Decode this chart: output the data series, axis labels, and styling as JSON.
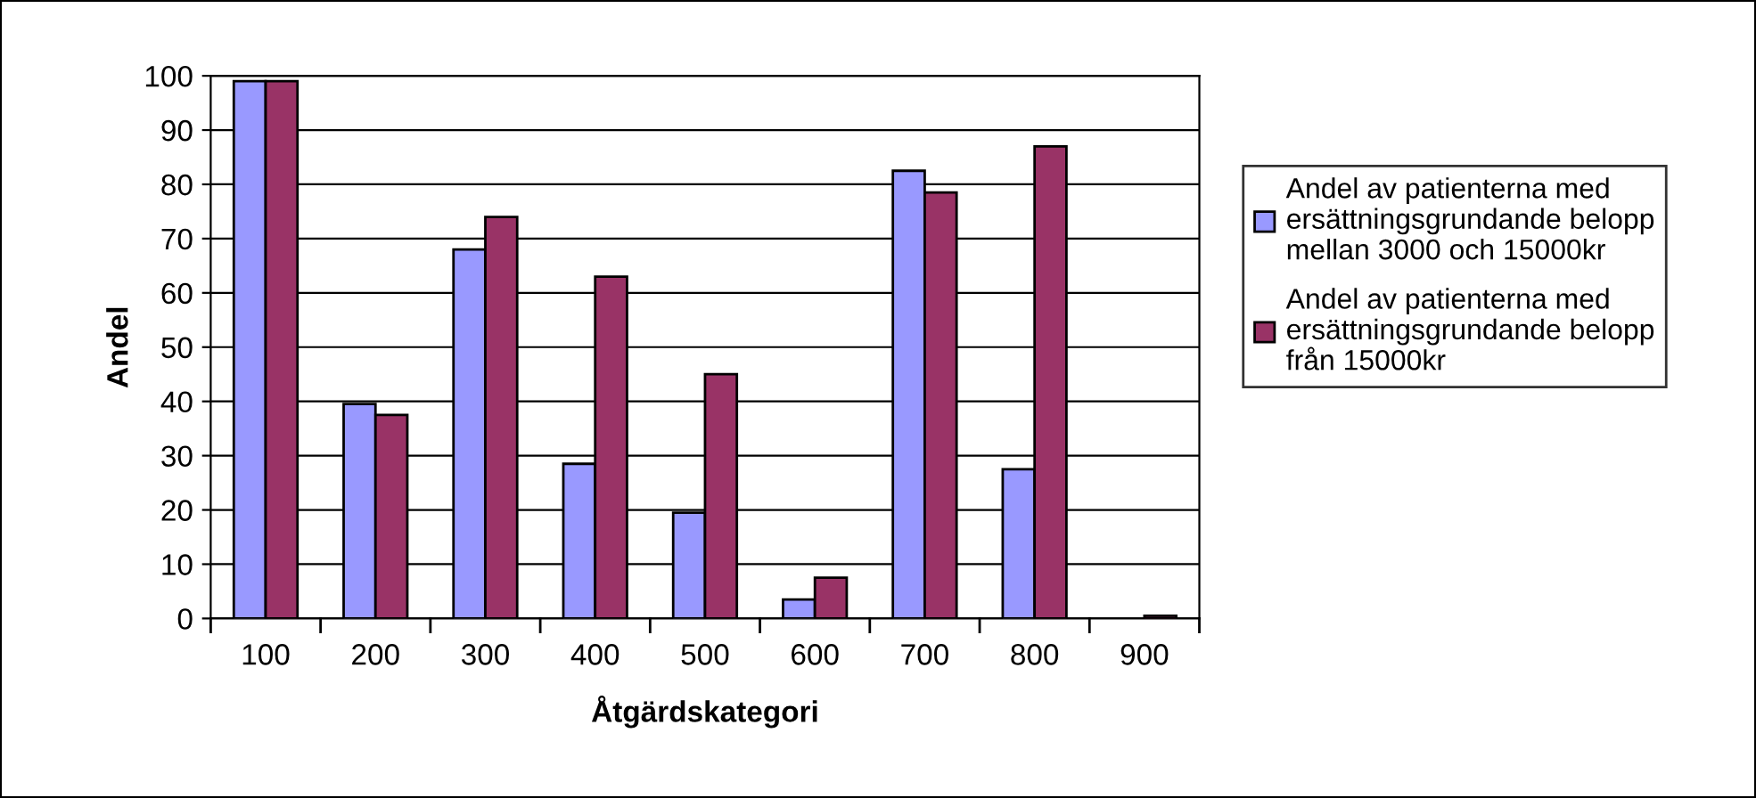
{
  "chart_data": {
    "type": "bar",
    "xlabel": "Åtgärdskategori",
    "ylabel": "Andel",
    "categories": [
      "100",
      "200",
      "300",
      "400",
      "500",
      "600",
      "700",
      "800",
      "900"
    ],
    "series": [
      {
        "name": "Andel av patienterna med ersättningsgrundande belopp mellan 3000 och 15000kr",
        "color": "#9999ff",
        "values": [
          99,
          39.5,
          68,
          28.5,
          19.5,
          3.5,
          82.5,
          27.5,
          0
        ]
      },
      {
        "name": "Andel av patienterna med ersättningsgrundande belopp från 15000kr",
        "color": "#993366",
        "values": [
          99,
          37.5,
          74,
          63,
          45,
          7.5,
          78.5,
          87,
          0.5
        ]
      }
    ],
    "ylim": [
      0,
      100
    ],
    "yticks": [
      0,
      10,
      20,
      30,
      40,
      50,
      60,
      70,
      80,
      90,
      100
    ],
    "grid": "y",
    "legend": "right"
  }
}
